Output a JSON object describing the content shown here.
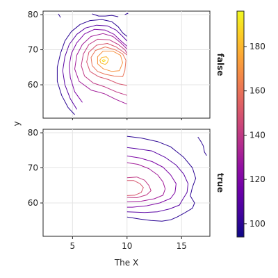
{
  "chart_data": {
    "type": "contour",
    "xlabel": "The X",
    "ylabel": "y",
    "x_ticks": [
      5,
      10,
      15
    ],
    "y_ticks": [
      60,
      70,
      80
    ],
    "xlim": [
      2.3,
      17.6
    ],
    "ylim": [
      50.5,
      81
    ],
    "facets": [
      {
        "label": "false",
        "contours": [
          {
            "level": 100,
            "points": [
              [
                5.2,
                51.5
              ],
              [
                4.6,
                53.5
              ],
              [
                4.0,
                57.0
              ],
              [
                3.6,
                61.0
              ],
              [
                3.6,
                65.0
              ],
              [
                3.9,
                69.0
              ],
              [
                4.3,
                72.5
              ],
              [
                4.9,
                75.2
              ],
              [
                5.7,
                77.2
              ],
              [
                6.6,
                78.3
              ],
              [
                7.7,
                78.6
              ],
              [
                8.6,
                78.0
              ],
              [
                9.2,
                76.5
              ],
              [
                9.6,
                74.8
              ],
              [
                10.0,
                73.8
              ]
            ]
          },
          {
            "level": 110,
            "points": [
              [
                5.4,
                53.0
              ],
              [
                4.8,
                56.0
              ],
              [
                4.3,
                60.0
              ],
              [
                4.1,
                64.0
              ],
              [
                4.3,
                68.0
              ],
              [
                4.7,
                71.5
              ],
              [
                5.4,
                74.4
              ],
              [
                6.2,
                76.2
              ],
              [
                7.2,
                77.0
              ],
              [
                8.2,
                76.8
              ],
              [
                9.0,
                75.6
              ],
              [
                9.6,
                73.8
              ],
              [
                10.0,
                72.5
              ]
            ]
          },
          {
            "level": 120,
            "points": [
              [
                5.9,
                55.0
              ],
              [
                5.2,
                58.0
              ],
              [
                4.8,
                62.0
              ],
              [
                4.7,
                65.5
              ],
              [
                4.9,
                69.0
              ],
              [
                5.4,
                72.0
              ],
              [
                6.1,
                74.5
              ],
              [
                7.0,
                75.8
              ],
              [
                8.0,
                75.6
              ],
              [
                8.8,
                74.4
              ],
              [
                9.4,
                72.6
              ],
              [
                10.0,
                71.0
              ]
            ]
          },
          {
            "level": 130,
            "points": [
              [
                10.0,
                54.5
              ],
              [
                9.0,
                55.8
              ],
              [
                7.9,
                57.5
              ],
              [
                6.7,
                58.5
              ],
              [
                5.6,
                61.0
              ],
              [
                5.2,
                64.5
              ],
              [
                5.4,
                68.5
              ],
              [
                5.9,
                71.5
              ],
              [
                6.7,
                73.8
              ],
              [
                7.8,
                74.6
              ],
              [
                8.7,
                73.8
              ],
              [
                9.4,
                72.0
              ],
              [
                10.0,
                70.2
              ]
            ]
          },
          {
            "level": 140,
            "points": [
              [
                10.0,
                57.0
              ],
              [
                9.0,
                58.0
              ],
              [
                7.9,
                59.5
              ],
              [
                6.9,
                60.5
              ],
              [
                6.1,
                62.5
              ],
              [
                5.8,
                65.5
              ],
              [
                6.0,
                68.8
              ],
              [
                6.5,
                71.5
              ],
              [
                7.3,
                73.0
              ],
              [
                8.4,
                72.8
              ],
              [
                9.2,
                71.5
              ],
              [
                9.8,
                70.0
              ],
              [
                10.0,
                69.0
              ]
            ]
          },
          {
            "level": 150,
            "points": [
              [
                10.0,
                59.8
              ],
              [
                9.2,
                60.3
              ],
              [
                8.3,
                61.5
              ],
              [
                7.4,
                62.3
              ],
              [
                6.6,
                63.8
              ],
              [
                6.3,
                66.5
              ],
              [
                6.5,
                69.3
              ],
              [
                7.2,
                71.3
              ],
              [
                8.2,
                71.8
              ],
              [
                9.0,
                70.8
              ],
              [
                9.6,
                69.5
              ],
              [
                10.0,
                68.5
              ]
            ]
          },
          {
            "level": 160,
            "points": [
              [
                9.6,
                62.3
              ],
              [
                8.8,
                62.5
              ],
              [
                8.0,
                63.0
              ],
              [
                7.3,
                63.8
              ],
              [
                6.8,
                65.5
              ],
              [
                6.7,
                67.8
              ],
              [
                7.1,
                69.8
              ],
              [
                8.0,
                70.8
              ],
              [
                8.9,
                70.0
              ],
              [
                9.6,
                68.8
              ],
              [
                9.9,
                67.0
              ],
              [
                9.8,
                64.0
              ],
              [
                9.6,
                62.3
              ]
            ]
          },
          {
            "level": 170,
            "points": [
              [
                9.3,
                64.0
              ],
              [
                8.6,
                63.8
              ],
              [
                7.8,
                64.6
              ],
              [
                7.3,
                66.0
              ],
              [
                7.3,
                68.0
              ],
              [
                7.8,
                69.6
              ],
              [
                8.7,
                69.6
              ],
              [
                9.4,
                68.4
              ],
              [
                9.6,
                66.3
              ],
              [
                9.3,
                64.0
              ]
            ]
          },
          {
            "level": 180,
            "points": [
              [
                8.0,
                65.8
              ],
              [
                7.6,
                66.2
              ],
              [
                7.5,
                67.0
              ],
              [
                7.7,
                67.8
              ],
              [
                8.1,
                68.0
              ],
              [
                8.3,
                67.3
              ],
              [
                8.2,
                66.3
              ],
              [
                8.0,
                65.8
              ]
            ]
          },
          {
            "level": 190,
            "points": [
              [
                7.82,
                66.6
              ],
              [
                7.72,
                66.85
              ],
              [
                7.8,
                67.15
              ],
              [
                7.97,
                67.1
              ],
              [
                8.0,
                66.8
              ],
              [
                7.82,
                66.6
              ]
            ]
          },
          {
            "level": 100,
            "points": [
              [
                6.8,
                80.2
              ],
              [
                7.4,
                79.6
              ],
              [
                8.0,
                79.6
              ],
              [
                8.6,
                79.8
              ],
              [
                9.2,
                79.4
              ]
            ]
          },
          {
            "level": 100,
            "points": [
              [
                3.7,
                80.2
              ],
              [
                3.9,
                79.2
              ]
            ]
          },
          {
            "level": 100,
            "points": [
              [
                9.8,
                80.0
              ],
              [
                10.1,
                80.4
              ]
            ]
          }
        ]
      },
      {
        "label": "true",
        "contours": [
          {
            "level": 100,
            "points": [
              [
                10.0,
                79.0
              ],
              [
                11.3,
                78.5
              ],
              [
                12.8,
                77.5
              ],
              [
                14.0,
                76.0
              ],
              [
                15.2,
                73.0
              ],
              [
                16.0,
                70.0
              ],
              [
                16.3,
                67.0
              ],
              [
                16.0,
                64.5
              ],
              [
                15.8,
                62.0
              ],
              [
                16.2,
                60.0
              ],
              [
                16.0,
                58.5
              ],
              [
                15.3,
                57.2
              ],
              [
                14.6,
                56.0
              ],
              [
                14.0,
                55.2
              ],
              [
                13.2,
                54.8
              ],
              [
                12.2,
                55.0
              ],
              [
                11.2,
                55.4
              ],
              [
                10.0,
                56.0
              ]
            ]
          },
          {
            "level": 110,
            "points": [
              [
                10.0,
                75.8
              ],
              [
                11.0,
                75.4
              ],
              [
                12.3,
                74.8
              ],
              [
                13.5,
                73.0
              ],
              [
                14.5,
                70.8
              ],
              [
                15.2,
                68.2
              ],
              [
                15.6,
                65.5
              ],
              [
                15.5,
                63.0
              ],
              [
                15.1,
                61.0
              ],
              [
                14.8,
                59.4
              ],
              [
                13.9,
                58.3
              ],
              [
                12.8,
                57.5
              ],
              [
                11.6,
                57.3
              ],
              [
                10.0,
                57.5
              ]
            ]
          },
          {
            "level": 120,
            "points": [
              [
                10.0,
                73.4
              ],
              [
                11.2,
                72.8
              ],
              [
                12.3,
                71.8
              ],
              [
                13.3,
                70.2
              ],
              [
                14.0,
                68.0
              ],
              [
                14.5,
                65.5
              ],
              [
                14.4,
                63.0
              ],
              [
                14.0,
                61.3
              ],
              [
                13.0,
                60.0
              ],
              [
                11.8,
                59.2
              ],
              [
                10.5,
                58.8
              ],
              [
                10.0,
                58.8
              ]
            ]
          },
          {
            "level": 130,
            "points": [
              [
                10.0,
                71.5
              ],
              [
                11.0,
                71.0
              ],
              [
                12.0,
                69.8
              ],
              [
                12.8,
                68.0
              ],
              [
                13.3,
                66.0
              ],
              [
                13.5,
                64.0
              ],
              [
                13.3,
                62.2
              ],
              [
                12.5,
                61.2
              ],
              [
                11.3,
                60.5
              ],
              [
                10.0,
                60.3
              ]
            ]
          },
          {
            "level": 140,
            "points": [
              [
                10.0,
                67.2
              ],
              [
                10.9,
                67.4
              ],
              [
                11.6,
                66.5
              ],
              [
                12.0,
                65.0
              ],
              [
                12.2,
                63.5
              ],
              [
                11.8,
                62.3
              ],
              [
                10.9,
                61.5
              ],
              [
                10.0,
                61.6
              ]
            ]
          },
          {
            "level": 150,
            "points": [
              [
                10.0,
                66.4
              ],
              [
                10.6,
                66.4
              ],
              [
                11.2,
                65.5
              ],
              [
                11.5,
                64.4
              ],
              [
                11.3,
                63.0
              ],
              [
                10.7,
                62.2
              ],
              [
                10.0,
                62.1
              ]
            ]
          },
          {
            "level": 100,
            "points": [
              [
                16.5,
                78.8
              ],
              [
                16.8,
                77.4
              ],
              [
                17.0,
                76.2
              ],
              [
                17.1,
                74.5
              ],
              [
                17.3,
                73.5
              ]
            ]
          }
        ]
      }
    ],
    "colorbar": {
      "ticks": [
        100,
        120,
        140,
        160,
        180
      ],
      "range": [
        94,
        196
      ],
      "colors": [
        "#0d0887",
        "#41049d",
        "#6a00a8",
        "#8f0da4",
        "#b12a90",
        "#cc4778",
        "#e16462",
        "#f2844b",
        "#fca636",
        "#fcce25",
        "#f0f921"
      ]
    }
  }
}
